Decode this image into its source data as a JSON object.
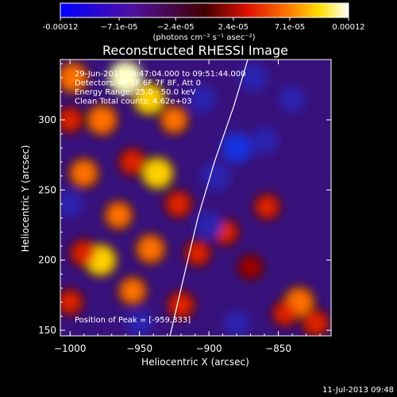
{
  "chart_data": {
    "type": "heatmap",
    "title": "Reconstructed RHESSI Image",
    "xlabel": "Heliocentric X (arcsec)",
    "ylabel": "Heliocentric Y (arcsec)",
    "xlim": [
      -1007,
      -812
    ],
    "ylim": [
      146,
      343
    ],
    "x_ticks": [
      -1000,
      -950,
      -900,
      -850
    ],
    "x_tick_labels": [
      "−1000",
      "−950",
      "−900",
      "−850"
    ],
    "y_ticks": [
      150,
      200,
      250,
      300
    ],
    "y_tick_labels": [
      "150",
      "200",
      "250",
      "300"
    ],
    "colorbar": {
      "ticks": [
        -0.00012,
        -7.1e-05,
        -2.4e-05,
        2.4e-05,
        7.1e-05,
        0.00012
      ],
      "tick_labels": [
        "-0.00012",
        "−7.1e-05",
        "−2.4e-05",
        "2.4e-05",
        "7.1e-05",
        "0.00012"
      ],
      "range": [
        -0.00012,
        0.00012
      ],
      "unit_label": "(photons cm⁻² s⁻¹ asec⁻²)"
    },
    "annotations": [
      "29-Jun-2013 09:47:04.000 to 09:51:44.000",
      "Detectors: 4F 5F 6F 7F 8F, Att 0",
      "Energy Range: 25.0 - 50.0 keV",
      "Clean    Total counts: 4.62e+03"
    ],
    "peak_text": "Position of Peak = [-959,333]",
    "peak": [
      -959,
      333
    ],
    "limb_curve": [
      [
        -928,
        146
      ],
      [
        -920,
        180
      ],
      [
        -908,
        230
      ],
      [
        -896,
        270
      ],
      [
        -882,
        310
      ],
      [
        -872,
        343
      ]
    ],
    "hot_spots": [
      {
        "x": -960,
        "y": 330,
        "v": 0.00012
      },
      {
        "x": -943,
        "y": 315,
        "v": 0.0001
      },
      {
        "x": -998,
        "y": 330,
        "v": 9e-05
      },
      {
        "x": -977,
        "y": 300,
        "v": 9e-05
      },
      {
        "x": -925,
        "y": 300,
        "v": 7e-05
      },
      {
        "x": -937,
        "y": 262,
        "v": 0.0001
      },
      {
        "x": -990,
        "y": 262,
        "v": 8e-05
      },
      {
        "x": -965,
        "y": 232,
        "v": 7e-05
      },
      {
        "x": -922,
        "y": 240,
        "v": 6e-05
      },
      {
        "x": -978,
        "y": 200,
        "v": 0.0001
      },
      {
        "x": -942,
        "y": 208,
        "v": 8e-05
      },
      {
        "x": -955,
        "y": 178,
        "v": 7e-05
      },
      {
        "x": -1000,
        "y": 170,
        "v": 5e-05
      },
      {
        "x": -920,
        "y": 168,
        "v": 6e-05
      },
      {
        "x": -908,
        "y": 205,
        "v": 5e-05
      },
      {
        "x": -888,
        "y": 220,
        "v": 5e-05
      },
      {
        "x": -858,
        "y": 238,
        "v": 5e-05
      },
      {
        "x": -835,
        "y": 170,
        "v": 9e-05
      },
      {
        "x": -823,
        "y": 155,
        "v": 6e-05
      },
      {
        "x": -845,
        "y": 162,
        "v": 5e-05
      },
      {
        "x": -870,
        "y": 195,
        "v": 4e-05
      },
      {
        "x": -990,
        "y": 205,
        "v": 6e-05
      },
      {
        "x": -1000,
        "y": 300,
        "v": 5e-05
      },
      {
        "x": -955,
        "y": 270,
        "v": 6e-05
      }
    ],
    "cold_spots": [
      {
        "x": -880,
        "y": 280,
        "v": -7e-05
      },
      {
        "x": -868,
        "y": 330,
        "v": -6e-05
      },
      {
        "x": -900,
        "y": 225,
        "v": -5e-05
      },
      {
        "x": -905,
        "y": 315,
        "v": -5e-05
      },
      {
        "x": -895,
        "y": 260,
        "v": -6e-05
      },
      {
        "x": -860,
        "y": 285,
        "v": -5e-05
      },
      {
        "x": -1000,
        "y": 240,
        "v": -4e-05
      },
      {
        "x": -950,
        "y": 155,
        "v": -4e-05
      },
      {
        "x": -880,
        "y": 155,
        "v": -4e-05
      },
      {
        "x": -840,
        "y": 315,
        "v": -4e-05
      }
    ],
    "grid": false
  },
  "footer": {
    "date": "11-Jul-2013 09:48"
  }
}
